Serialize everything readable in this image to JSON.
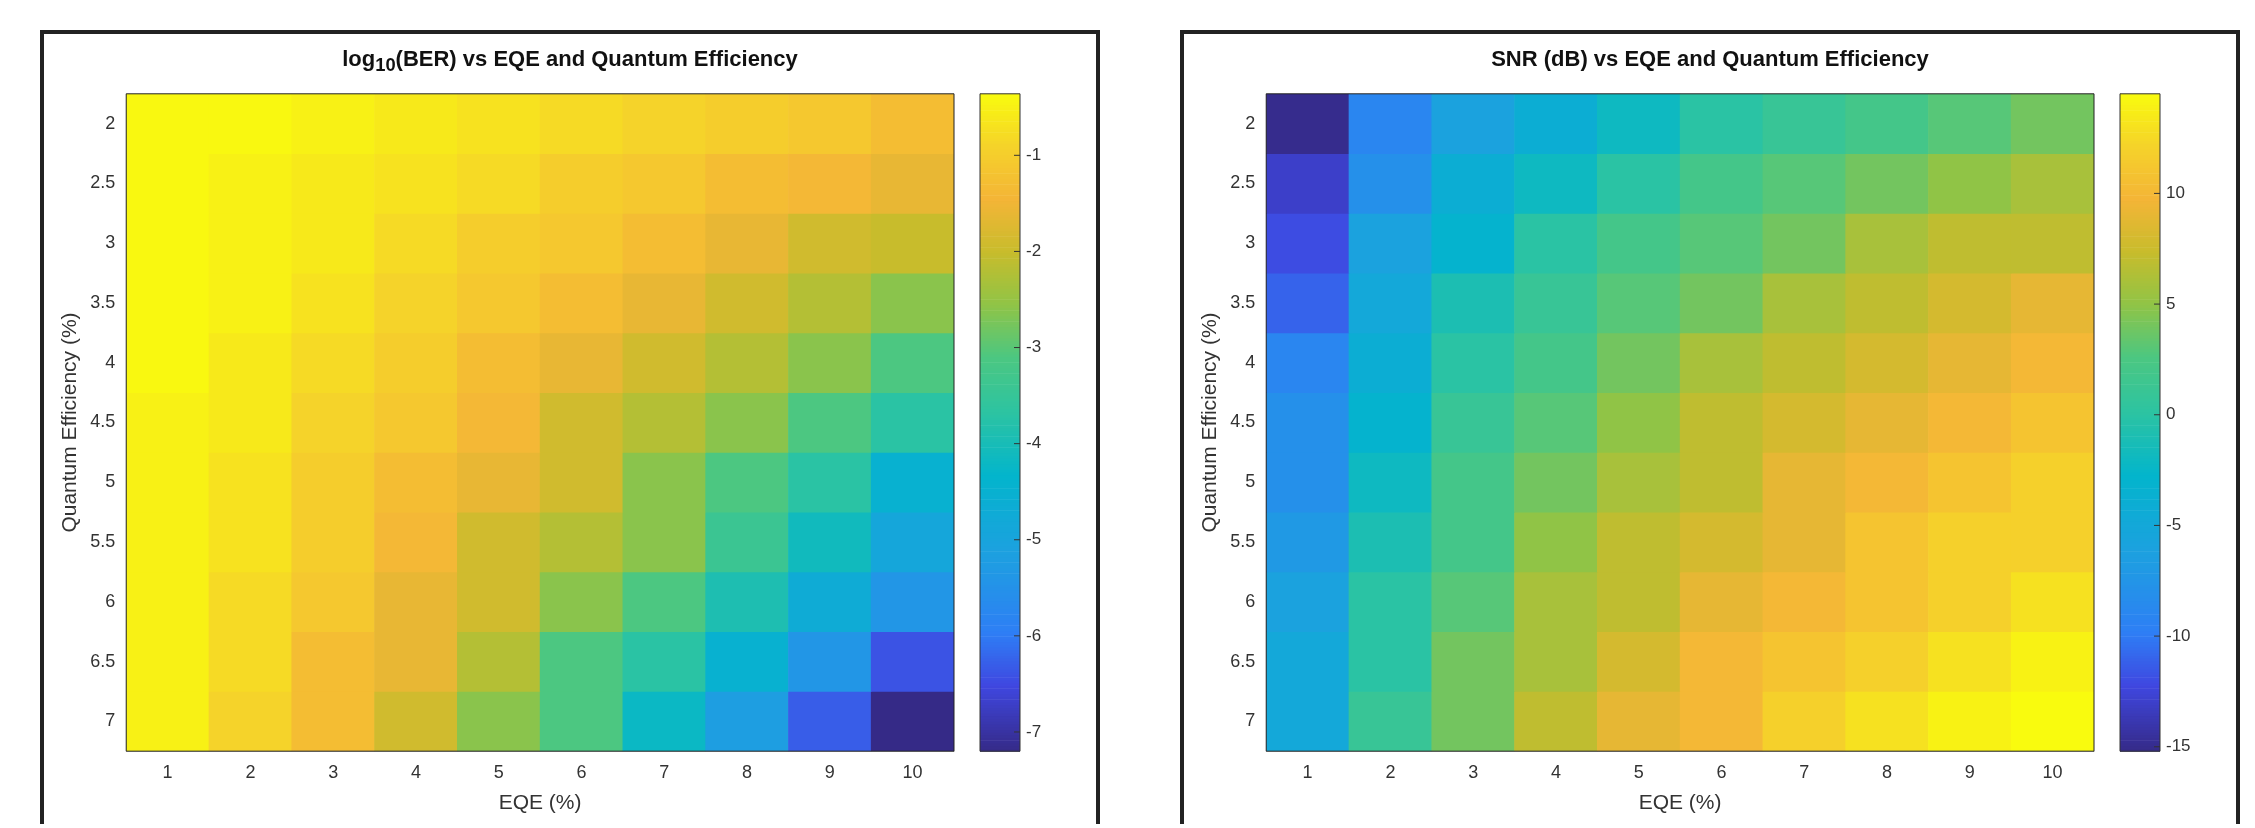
{
  "chart_data": [
    {
      "type": "heatmap",
      "title": "log$_{10}$(BER) vs EQE and Quantum Efficiency",
      "xlabel": "EQE (%)",
      "ylabel": "Quantum Efficiency (%)",
      "categories": [
        "1",
        "2",
        "3",
        "4",
        "5",
        "6",
        "7",
        "8",
        "9",
        "10"
      ],
      "y_categories": [
        "2",
        "2.5",
        "3",
        "3.5",
        "4",
        "4.5",
        "5",
        "5.5",
        "6",
        "6.5",
        "7"
      ],
      "cells": [
        [
          -0.4,
          -0.4,
          -0.5,
          -0.6,
          -0.7,
          -0.8,
          -0.9,
          -1.0,
          -1.1,
          -1.3
        ],
        [
          -0.4,
          -0.5,
          -0.6,
          -0.7,
          -0.8,
          -1.0,
          -1.1,
          -1.3,
          -1.4,
          -1.6
        ],
        [
          -0.4,
          -0.5,
          -0.6,
          -0.8,
          -1.0,
          -1.1,
          -1.3,
          -1.6,
          -1.9,
          -2.0
        ],
        [
          -0.4,
          -0.5,
          -0.7,
          -0.9,
          -1.1,
          -1.3,
          -1.6,
          -1.9,
          -2.2,
          -2.6
        ],
        [
          -0.4,
          -0.6,
          -0.8,
          -1.0,
          -1.3,
          -1.6,
          -1.9,
          -2.2,
          -2.6,
          -3.1
        ],
        [
          -0.5,
          -0.6,
          -0.9,
          -1.1,
          -1.4,
          -1.9,
          -2.2,
          -2.6,
          -3.1,
          -3.7
        ],
        [
          -0.5,
          -0.7,
          -1.0,
          -1.3,
          -1.6,
          -1.9,
          -2.6,
          -3.1,
          -3.7,
          -4.5
        ],
        [
          -0.5,
          -0.7,
          -1.0,
          -1.4,
          -1.9,
          -2.2,
          -2.6,
          -3.4,
          -4.1,
          -4.9
        ],
        [
          -0.5,
          -0.8,
          -1.1,
          -1.6,
          -1.9,
          -2.6,
          -3.1,
          -3.9,
          -4.7,
          -5.4
        ],
        [
          -0.5,
          -0.8,
          -1.3,
          -1.6,
          -2.2,
          -3.1,
          -3.7,
          -4.5,
          -5.4,
          -6.4
        ],
        [
          -0.5,
          -0.9,
          -1.3,
          -1.9,
          -2.6,
          -3.1,
          -4.2,
          -5.2,
          -6.3,
          -7.2
        ]
      ],
      "clim": [
        -7.2,
        -0.36
      ],
      "cticks": [
        -7,
        -6,
        -5,
        -4,
        -3,
        -2,
        -1
      ]
    },
    {
      "type": "heatmap",
      "title": "SNR (dB) vs EQE and Quantum Efficiency",
      "xlabel": "EQE (%)",
      "ylabel": "Quantum Efficiency (%)",
      "categories": [
        "1",
        "2",
        "3",
        "4",
        "5",
        "6",
        "7",
        "8",
        "9",
        "10"
      ],
      "y_categories": [
        "2",
        "2.5",
        "3",
        "3.5",
        "4",
        "4.5",
        "5",
        "5.5",
        "6",
        "6.5",
        "7"
      ],
      "cells": [
        [
          -15,
          -9,
          -6,
          -4,
          -2,
          0,
          1,
          2,
          3,
          4
        ],
        [
          -13,
          -8,
          -4,
          -2,
          0,
          2,
          3,
          4,
          5,
          6
        ],
        [
          -12,
          -6,
          -3,
          0,
          2,
          3,
          4,
          6,
          7,
          7
        ],
        [
          -11,
          -5,
          -1,
          1,
          3,
          4,
          6,
          7,
          8,
          9
        ],
        [
          -9,
          -4,
          0,
          2,
          4,
          6,
          7,
          8,
          9,
          10
        ],
        [
          -8,
          -3,
          1,
          3,
          5,
          7,
          8,
          9,
          10,
          11
        ],
        [
          -8,
          -2,
          2,
          4,
          6,
          7,
          9,
          10,
          11,
          12
        ],
        [
          -7,
          -1,
          2,
          5,
          7,
          8,
          9,
          11,
          12,
          12
        ],
        [
          -6,
          0,
          3,
          6,
          7,
          9,
          10,
          11,
          12,
          13
        ],
        [
          -5,
          0,
          4,
          6,
          8,
          10,
          11,
          12,
          13,
          14
        ],
        [
          -5,
          1,
          4,
          7,
          9,
          10,
          12,
          13,
          14,
          14.5
        ]
      ],
      "clim": [
        -15.2,
        14.5
      ],
      "cticks": [
        -15,
        -10,
        -5,
        0,
        5,
        10
      ]
    }
  ]
}
